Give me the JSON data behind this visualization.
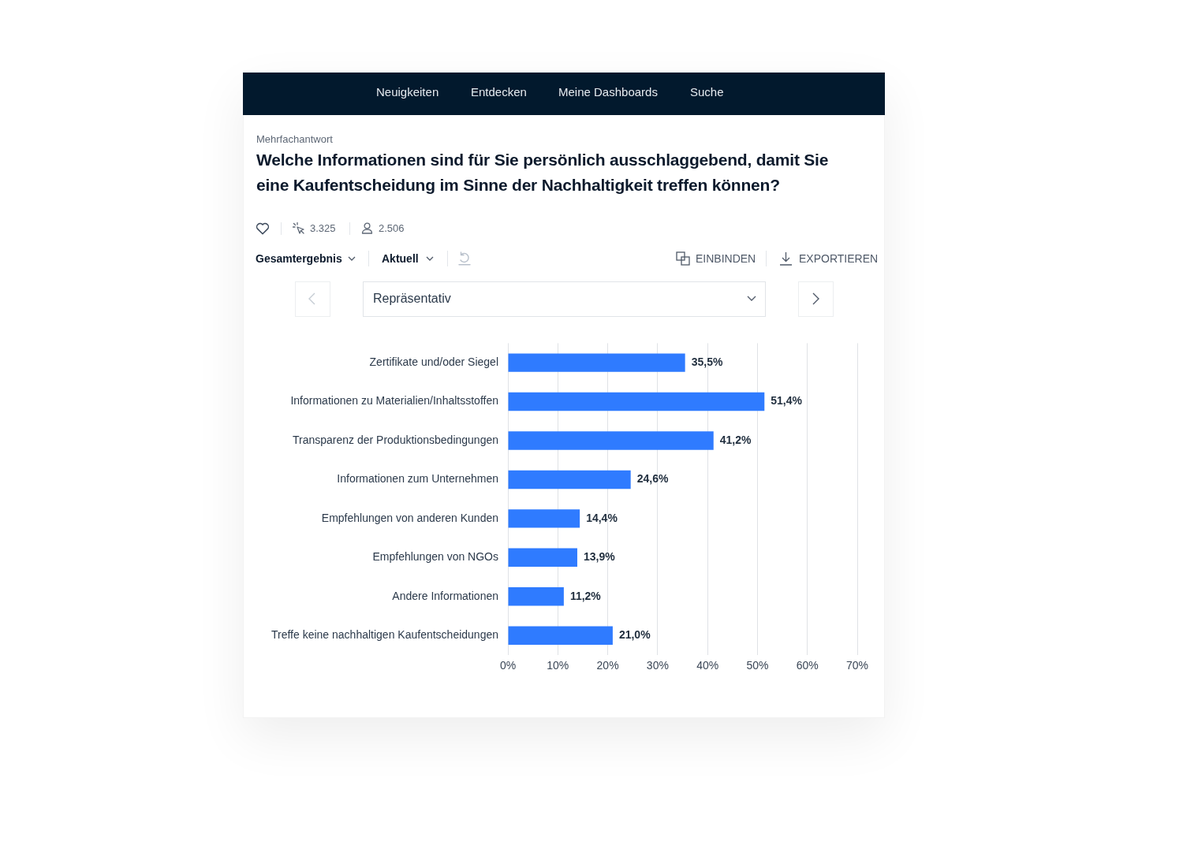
{
  "chart_data": {
    "type": "bar",
    "orientation": "horizontal",
    "title": "Welche Informationen sind für Sie persönlich ausschlaggebend, damit Sie eine Kaufentscheidung im Sinne der Nachhaltigkeit treffen können?",
    "annotations": [
      "Mehrfachantwort",
      "Neuigkeiten",
      "Entdecken",
      "Meine Dashboards",
      "Suche",
      "3.325",
      "2.506",
      "Gesamtergebnis",
      "Aktuell",
      "EINBINDEN",
      "EXPORTIEREN",
      "Repräsentativ"
    ],
    "categories": [
      "Zertifikate und/oder Siegel",
      "Informationen zu Materialien/Inhaltsstoffen",
      "Transparenz der Produktionsbedingungen",
      "Informationen zum Unternehmen",
      "Empfehlungen von anderen Kunden",
      "Empfehlungen von NGOs",
      "Andere Informationen",
      "Treffe keine nachhaltigen Kaufentscheidungen"
    ],
    "values": [
      35.5,
      51.4,
      41.2,
      24.6,
      14.4,
      13.9,
      11.2,
      21.0
    ],
    "value_labels": [
      "35,5%",
      "51,4%",
      "41,2%",
      "24,6%",
      "14,4%",
      "13,9%",
      "11,2%",
      "21,0%"
    ],
    "color": "#2f7bff",
    "xlim": [
      0,
      70
    ],
    "xticks": [
      {
        "value": 0,
        "label": "0%"
      },
      {
        "value": 10,
        "label": "10%"
      },
      {
        "value": 20,
        "label": "20%"
      },
      {
        "value": 30,
        "label": "30%"
      },
      {
        "value": 40,
        "label": "40%"
      },
      {
        "value": 50,
        "label": "50%"
      },
      {
        "value": 60,
        "label": "60%"
      },
      {
        "value": 70,
        "label": "70%"
      }
    ],
    "grid": "x",
    "legend": false
  }
}
